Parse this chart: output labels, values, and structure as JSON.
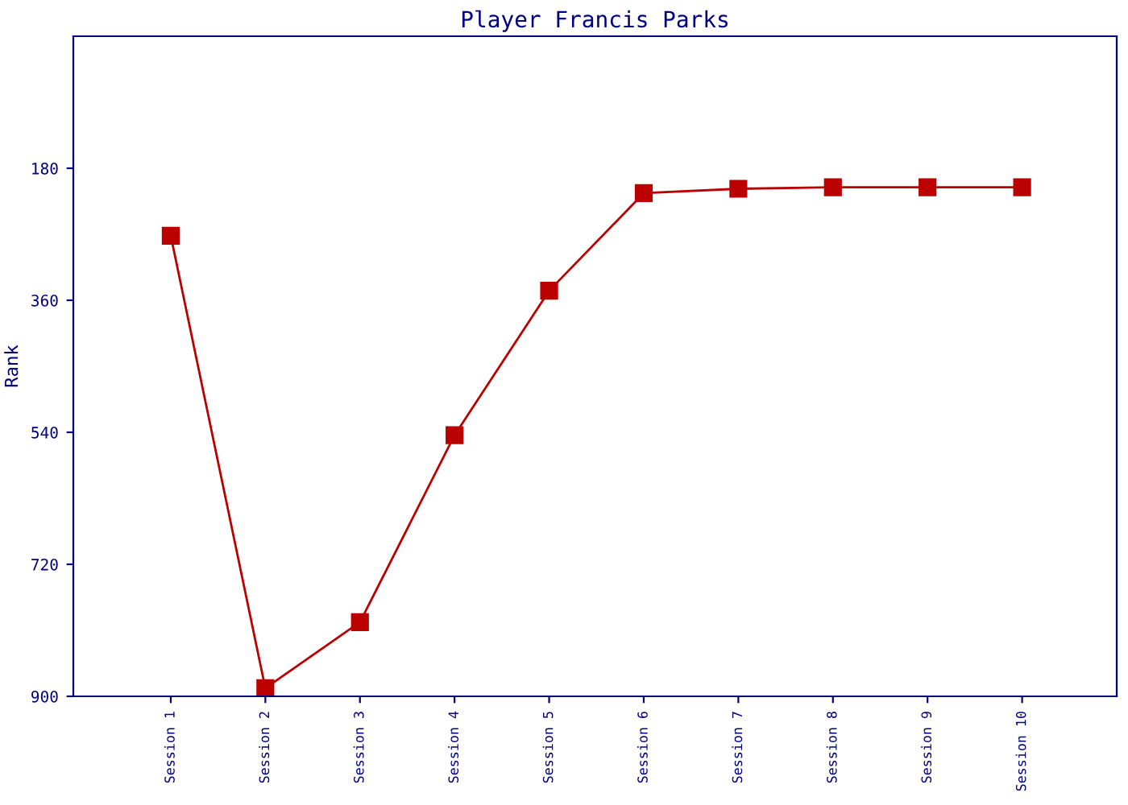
{
  "chart_data": {
    "type": "line",
    "title": "Player Francis Parks",
    "ylabel": "Rank",
    "categories": [
      "Session 1",
      "Session 2",
      "Session 3",
      "Session 4",
      "Session 5",
      "Session 6",
      "Session 7",
      "Session 8",
      "Session 9",
      "Session 10"
    ],
    "series": [
      {
        "color": "#bb0000",
        "values": [
          272,
          889,
          799,
          544,
          347,
          214,
          208,
          206,
          206,
          206
        ]
      }
    ],
    "ylim": [
      900,
      0
    ],
    "yticks": [
      180,
      360,
      540,
      720,
      900
    ],
    "grid": false,
    "legend": false,
    "marker": "square",
    "line_style": "solid"
  }
}
